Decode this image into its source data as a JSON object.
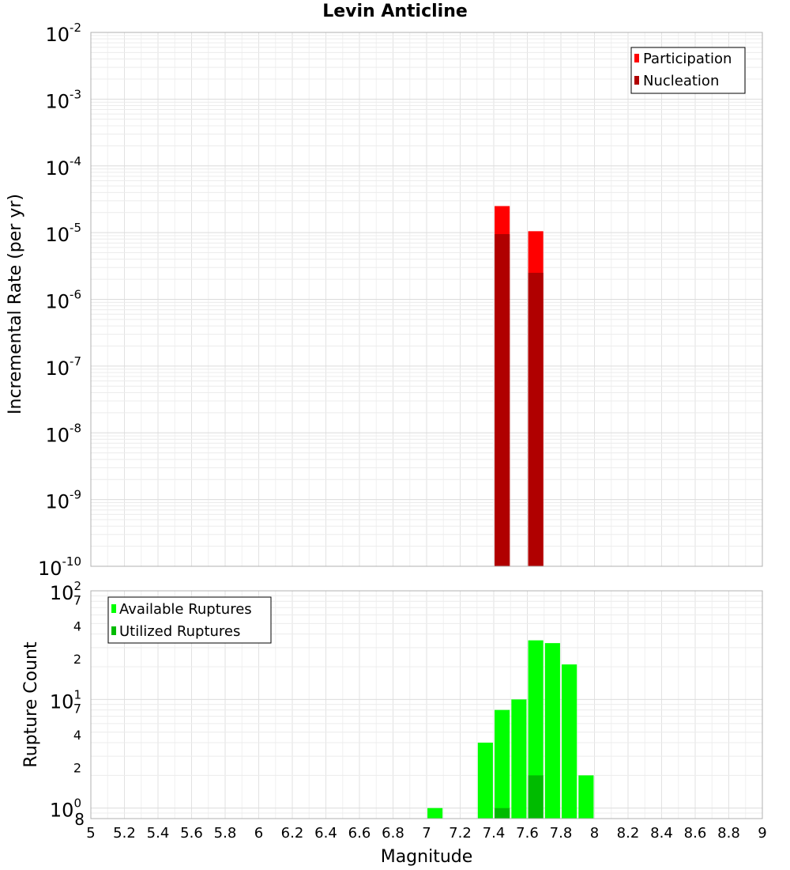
{
  "chart_data": [
    {
      "type": "bar",
      "title": "Levin Anticline",
      "xlabel": "Magnitude",
      "ylabel": "Incremental Rate (per yr)",
      "yscale": "log",
      "ylim": [
        1e-10,
        0.01
      ],
      "xlim": [
        5,
        9
      ],
      "grid": true,
      "legend_position": "top-right",
      "series": [
        {
          "name": "Participation",
          "color": "#ff0000",
          "points": [
            {
              "x": 7.45,
              "y": 2.5e-05
            },
            {
              "x": 7.65,
              "y": 1.05e-05
            }
          ]
        },
        {
          "name": "Nucleation",
          "color": "#b00000",
          "points": [
            {
              "x": 7.45,
              "y": 9.5e-06
            },
            {
              "x": 7.65,
              "y": 2.5e-06
            }
          ]
        }
      ],
      "y_ticks": [
        {
          "base": "10",
          "exp": "-10"
        },
        {
          "base": "10",
          "exp": "-9"
        },
        {
          "base": "10",
          "exp": "-8"
        },
        {
          "base": "10",
          "exp": "-7"
        },
        {
          "base": "10",
          "exp": "-6"
        },
        {
          "base": "10",
          "exp": "-5"
        },
        {
          "base": "10",
          "exp": "-4"
        },
        {
          "base": "10",
          "exp": "-3"
        },
        {
          "base": "10",
          "exp": "-2"
        }
      ]
    },
    {
      "type": "bar",
      "xlabel": "Magnitude",
      "ylabel": "Rupture Count",
      "yscale": "log",
      "ylim": [
        0.8,
        100
      ],
      "xlim": [
        5,
        9
      ],
      "grid": true,
      "legend_position": "top-left",
      "series": [
        {
          "name": "Available Ruptures",
          "color": "#00ff00",
          "points": [
            {
              "x": 7.05,
              "y": 1
            },
            {
              "x": 7.35,
              "y": 4
            },
            {
              "x": 7.45,
              "y": 8
            },
            {
              "x": 7.55,
              "y": 10
            },
            {
              "x": 7.65,
              "y": 35
            },
            {
              "x": 7.75,
              "y": 33
            },
            {
              "x": 7.85,
              "y": 21
            },
            {
              "x": 7.95,
              "y": 2
            }
          ]
        },
        {
          "name": "Utilized Ruptures",
          "color": "#00bb00",
          "points": [
            {
              "x": 7.45,
              "y": 1
            },
            {
              "x": 7.65,
              "y": 2
            }
          ]
        }
      ],
      "y_ticks": [
        {
          "base": "10",
          "exp": "0",
          "value": 1,
          "major": true
        },
        {
          "base": "",
          "exp": "",
          "label": "2",
          "value": 2,
          "major": false
        },
        {
          "base": "",
          "exp": "",
          "label": "4",
          "value": 4,
          "major": false
        },
        {
          "base": "",
          "exp": "",
          "label": "7",
          "value": 7,
          "major": false
        },
        {
          "base": "10",
          "exp": "1",
          "value": 10,
          "major": true
        },
        {
          "base": "",
          "exp": "",
          "label": "2",
          "value": 20,
          "major": false
        },
        {
          "base": "",
          "exp": "",
          "label": "4",
          "value": 40,
          "major": false
        },
        {
          "base": "",
          "exp": "",
          "label": "7",
          "value": 70,
          "major": false
        },
        {
          "base": "10",
          "exp": "2",
          "value": 100,
          "major": true
        }
      ],
      "y_bottom_label": "8"
    }
  ],
  "x_ticks": [
    "5",
    "5.2",
    "5.4",
    "5.6",
    "5.8",
    "6",
    "6.2",
    "6.4",
    "6.6",
    "6.8",
    "7",
    "7.2",
    "7.4",
    "7.6",
    "7.8",
    "8",
    "8.2",
    "8.4",
    "8.6",
    "8.8",
    "9"
  ]
}
